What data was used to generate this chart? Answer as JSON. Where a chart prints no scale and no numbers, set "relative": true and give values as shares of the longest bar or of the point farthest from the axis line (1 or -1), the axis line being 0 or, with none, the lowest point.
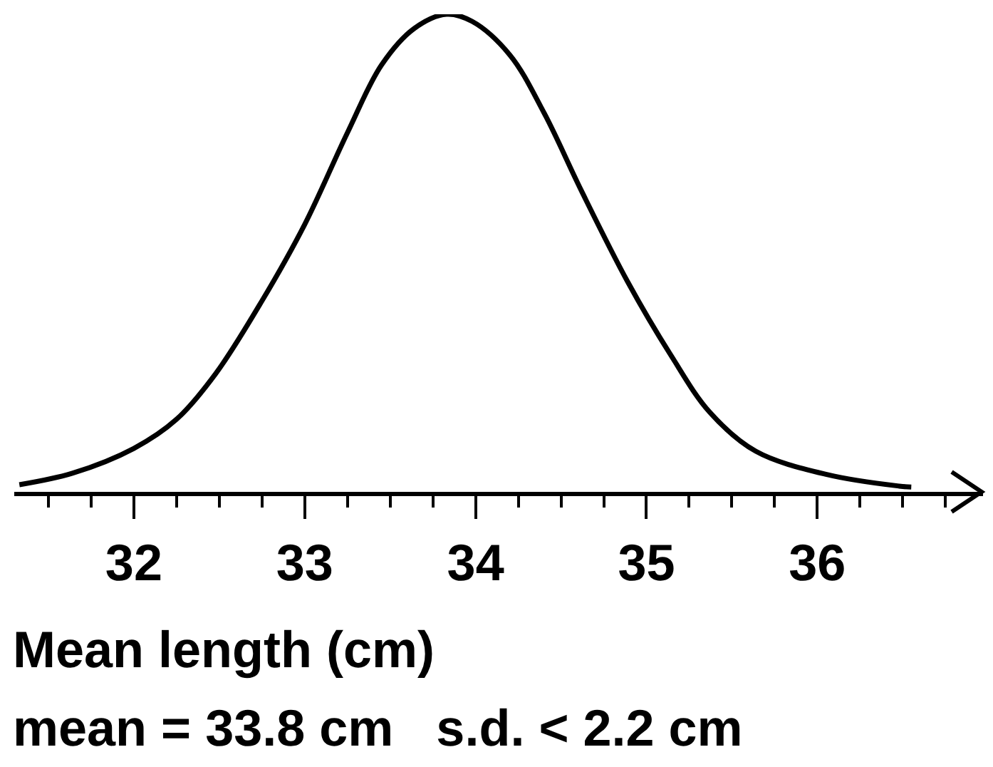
{
  "chart_data": {
    "type": "line",
    "relative": true,
    "xlabel": "Mean length (cm)",
    "annotations": [
      "mean = 33.8 cm   s.d. < 2.2 cm"
    ],
    "xlim": [
      31.3,
      36.97
    ],
    "xticks": [
      {
        "value": 31.5,
        "label": null
      },
      {
        "value": 31.75,
        "label": null
      },
      32,
      {
        "value": 32.25,
        "label": null
      },
      {
        "value": 32.5,
        "label": null
      },
      {
        "value": 32.75,
        "label": null
      },
      33,
      {
        "value": 33.25,
        "label": null
      },
      {
        "value": 33.5,
        "label": null
      },
      {
        "value": 33.75,
        "label": null
      },
      34,
      {
        "value": 34.25,
        "label": null
      },
      {
        "value": 34.5,
        "label": null
      },
      {
        "value": 34.75,
        "label": null
      },
      35,
      {
        "value": 35.25,
        "label": null
      },
      {
        "value": 35.5,
        "label": null
      },
      {
        "value": 35.75,
        "label": null
      },
      36,
      {
        "value": 36.25,
        "label": null
      },
      {
        "value": 36.5,
        "label": null
      },
      {
        "value": 36.75,
        "label": null
      }
    ],
    "marker": "none",
    "line_style": "solid",
    "tick_labels": "x",
    "x": [
      31.33,
      31.64,
      32.0,
      32.25,
      32.48,
      32.75,
      33.0,
      33.25,
      33.45,
      33.64,
      33.83,
      33.98,
      34.2,
      34.4,
      34.62,
      34.89,
      35.14,
      35.37,
      35.64,
      36.06,
      36.48,
      36.55
    ],
    "series": [
      {
        "color": "#000000",
        "values": [
          0.015,
          0.039,
          0.091,
          0.152,
          0.248,
          0.4,
          0.56,
          0.752,
          0.894,
          0.97,
          1,
          0.985,
          0.915,
          0.794,
          0.63,
          0.44,
          0.288,
          0.167,
          0.085,
          0.036,
          0.012,
          0.01
        ]
      }
    ]
  }
}
